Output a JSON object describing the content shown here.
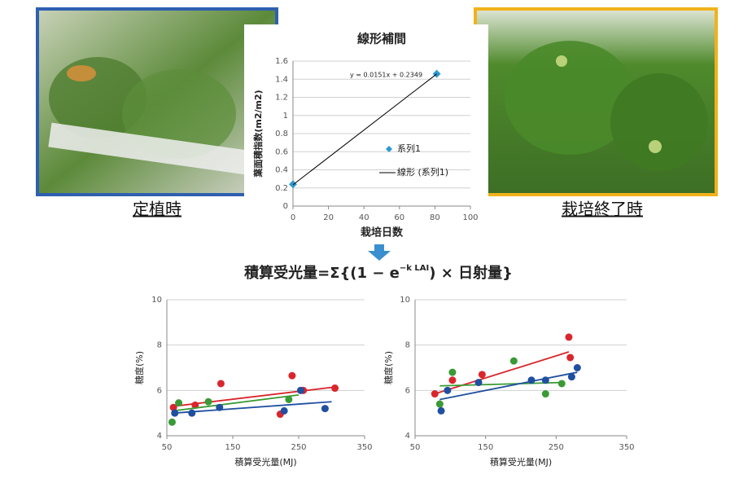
{
  "captions": {
    "left": "定植時",
    "right": "栽培終了時"
  },
  "formula": {
    "text": "積算受光量=Σ{(1 − e",
    "superscript": "−k LAI",
    "tail": ") × 日射量}"
  },
  "chart_data": [
    {
      "type": "scatter",
      "title": "線形補間",
      "x_label": "栽培日数",
      "y_label": "葉面積指数(m2/m2)",
      "xlim": [
        0,
        100
      ],
      "xticks": [
        0,
        20,
        40,
        60,
        80,
        100
      ],
      "ylim": [
        0,
        1.6
      ],
      "yticks": [
        0,
        0.2,
        0.4,
        0.6,
        0.8,
        1,
        1.2,
        1.4,
        1.6
      ],
      "grid": true,
      "legend": "right",
      "series": [
        {
          "name": "系列1",
          "color": "#2e9ad0",
          "marker": "diamond",
          "x": [
            0,
            81
          ],
          "values": [
            0.24,
            1.46
          ]
        }
      ],
      "trendline": {
        "name": "線形 (系列1)",
        "equation": "y = 0.0151x + 0.2349",
        "color": "#000000",
        "x": [
          0,
          81
        ],
        "values": [
          0.2349,
          1.458
        ]
      }
    },
    {
      "type": "scatter",
      "x_label": "積算受光量(MJ)",
      "y_label": "糖度(%)",
      "xlim": [
        50,
        350
      ],
      "xticks": [
        50,
        150,
        250,
        350
      ],
      "ylim": [
        4,
        10
      ],
      "yticks": [
        4,
        6,
        8,
        10
      ],
      "grid": true,
      "series": [
        {
          "color": "#d9262c",
          "x": [
            60,
            93,
            132,
            222,
            240,
            257,
            305
          ],
          "values": [
            5.25,
            5.35,
            6.3,
            4.95,
            6.65,
            6.0,
            6.1
          ],
          "trend": {
            "x": [
              60,
              305
            ],
            "values": [
              5.3,
              6.15
            ]
          }
        },
        {
          "color": "#3a9a35",
          "x": [
            58,
            68,
            113,
            235
          ],
          "values": [
            4.6,
            5.45,
            5.5,
            5.6
          ],
          "trend": {
            "x": [
              60,
              250
            ],
            "values": [
              5.1,
              5.8
            ]
          }
        },
        {
          "color": "#1f4fa0",
          "x": [
            62,
            88,
            130,
            228,
            253,
            290
          ],
          "values": [
            5.0,
            5.0,
            5.25,
            5.1,
            6.0,
            5.2
          ],
          "trend": {
            "x": [
              60,
              300
            ],
            "values": [
              5.0,
              5.5
            ]
          }
        }
      ]
    },
    {
      "type": "scatter",
      "x_label": "積算受光量(MJ)",
      "y_label": "糖度(%)",
      "xlim": [
        50,
        350
      ],
      "xticks": [
        50,
        150,
        250,
        350
      ],
      "ylim": [
        4,
        10
      ],
      "yticks": [
        4,
        6,
        8,
        10
      ],
      "grid": true,
      "series": [
        {
          "color": "#d9262c",
          "x": [
            78,
            103,
            145,
            268,
            270
          ],
          "values": [
            5.85,
            6.45,
            6.7,
            8.35,
            7.45
          ],
          "trend": {
            "x": [
              78,
              268
            ],
            "values": [
              5.85,
              7.7
            ]
          }
        },
        {
          "color": "#3a9a35",
          "x": [
            85,
            103,
            190,
            235,
            258
          ],
          "values": [
            5.4,
            6.8,
            7.3,
            5.85,
            6.3
          ],
          "trend": {
            "x": [
              85,
              258
            ],
            "values": [
              6.2,
              6.35
            ]
          }
        },
        {
          "color": "#1f4fa0",
          "x": [
            87,
            96,
            140,
            215,
            235,
            272,
            280
          ],
          "values": [
            5.1,
            6.0,
            6.35,
            6.45,
            6.45,
            6.6,
            7.0
          ],
          "trend": {
            "x": [
              85,
              280
            ],
            "values": [
              5.6,
              6.8
            ]
          }
        }
      ]
    }
  ]
}
